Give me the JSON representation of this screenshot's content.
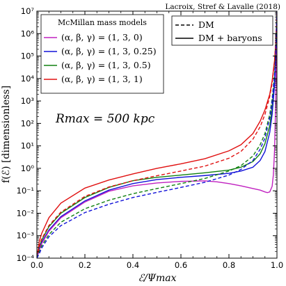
{
  "chart_data": {
    "type": "line",
    "credit": "Lacroix, Stref & Lavalle (2018)",
    "xlabel": "ℰ/Ψmax",
    "ylabel": "f(ℰ) [dimensionless]",
    "annotation": "Rmax = 500 kpc",
    "xlim": [
      0,
      1
    ],
    "ylim_log10": [
      -4,
      7
    ],
    "y_scale": "log",
    "x_ticks": [
      0,
      0.2,
      0.4,
      0.6,
      0.8,
      1.0
    ],
    "x_tick_labels": [
      "0.0",
      "0.2",
      "0.4",
      "0.6",
      "0.8",
      "1.0"
    ],
    "y_tick_exponents": [
      -4,
      -3,
      -2,
      -1,
      0,
      1,
      2,
      3,
      4,
      5,
      6,
      7
    ],
    "y_tick_labels": [
      "10⁻⁴",
      "10⁻³",
      "10⁻²",
      "10⁻¹",
      "10⁰",
      "10¹",
      "10²",
      "10³",
      "10⁴",
      "10⁵",
      "10⁶",
      "10⁷"
    ],
    "legend_models": {
      "title": "McMillan mass models",
      "placement": "upper-left",
      "entries": [
        {
          "label": "(α, β, γ) = (1, 3, 0)",
          "color": "#c020c0"
        },
        {
          "label": "(α, β, γ) = (1, 3, 0.25)",
          "color": "#1010d8"
        },
        {
          "label": "(α, β, γ) = (1, 3, 0.5)",
          "color": "#108010"
        },
        {
          "label": "(α, β, γ) = (1, 3, 1)",
          "color": "#e01010"
        }
      ]
    },
    "legend_styles": {
      "placement": "upper-right",
      "entries": [
        {
          "label": "DM",
          "dash": true
        },
        {
          "label": "DM + baryons",
          "dash": false
        }
      ]
    },
    "series": [
      {
        "model": 3,
        "dash": false,
        "x": [
          0,
          0.01,
          0.02,
          0.05,
          0.1,
          0.2,
          0.3,
          0.4,
          0.5,
          0.6,
          0.7,
          0.8,
          0.85,
          0.9,
          0.93,
          0.95,
          0.97,
          0.98,
          0.99,
          0.995,
          1.0
        ],
        "y_log10": [
          -4,
          -3.25,
          -2.9,
          -2.2,
          -1.55,
          -0.88,
          -0.52,
          -0.25,
          0.0,
          0.2,
          0.43,
          0.78,
          1.05,
          1.55,
          2.1,
          2.6,
          3.3,
          3.9,
          4.8,
          5.6,
          7
        ]
      },
      {
        "model": 2,
        "dash": false,
        "x": [
          0,
          0.01,
          0.02,
          0.05,
          0.1,
          0.2,
          0.3,
          0.4,
          0.5,
          0.6,
          0.7,
          0.8,
          0.85,
          0.9,
          0.93,
          0.95,
          0.97,
          0.98,
          0.99,
          0.995,
          1.0
        ],
        "y_log10": [
          -4,
          -3.5,
          -3.2,
          -2.6,
          -2.0,
          -1.3,
          -0.85,
          -0.55,
          -0.4,
          -0.3,
          -0.2,
          -0.08,
          0.05,
          0.3,
          0.65,
          1.1,
          1.9,
          2.7,
          3.9,
          5.1,
          7
        ]
      },
      {
        "model": 1,
        "dash": false,
        "x": [
          0,
          0.01,
          0.02,
          0.05,
          0.1,
          0.2,
          0.3,
          0.4,
          0.5,
          0.6,
          0.7,
          0.8,
          0.85,
          0.9,
          0.93,
          0.95,
          0.97,
          0.98,
          0.99,
          0.995,
          1.0
        ],
        "y_log10": [
          -4,
          -3.6,
          -3.3,
          -2.75,
          -2.15,
          -1.45,
          -0.97,
          -0.68,
          -0.5,
          -0.4,
          -0.32,
          -0.22,
          -0.12,
          0.05,
          0.35,
          0.75,
          1.6,
          2.4,
          3.7,
          5.0,
          7
        ]
      },
      {
        "model": 0,
        "dash": false,
        "x": [
          0,
          0.01,
          0.02,
          0.05,
          0.1,
          0.2,
          0.3,
          0.4,
          0.5,
          0.6,
          0.7,
          0.75,
          0.8,
          0.85,
          0.9,
          0.93,
          0.95,
          0.96,
          0.97,
          0.98,
          0.985,
          0.99,
          0.995,
          1.0
        ],
        "y_log10": [
          -4,
          -3.65,
          -3.35,
          -2.8,
          -2.2,
          -1.5,
          -1.02,
          -0.78,
          -0.65,
          -0.58,
          -0.56,
          -0.6,
          -0.68,
          -0.78,
          -0.9,
          -0.97,
          -1.05,
          -1.08,
          -1.05,
          -0.8,
          -0.3,
          0.8,
          3.0,
          7
        ]
      },
      {
        "model": 3,
        "dash": true,
        "x": [
          0,
          0.01,
          0.02,
          0.05,
          0.1,
          0.2,
          0.3,
          0.4,
          0.5,
          0.6,
          0.7,
          0.8,
          0.85,
          0.9,
          0.93,
          0.95,
          0.97,
          0.98,
          0.99,
          0.995,
          1.0
        ],
        "y_log10": [
          -4,
          -3.45,
          -3.15,
          -2.55,
          -1.95,
          -1.25,
          -0.83,
          -0.55,
          -0.33,
          -0.12,
          0.1,
          0.45,
          0.75,
          1.3,
          1.85,
          2.4,
          3.2,
          3.8,
          4.8,
          5.6,
          7
        ]
      },
      {
        "model": 2,
        "dash": true,
        "x": [
          0,
          0.01,
          0.02,
          0.05,
          0.1,
          0.2,
          0.3,
          0.4,
          0.5,
          0.6,
          0.7,
          0.8,
          0.85,
          0.9,
          0.93,
          0.95,
          0.97,
          0.98,
          0.99,
          0.995,
          1.0
        ],
        "y_log10": [
          -4,
          -3.7,
          -3.45,
          -2.95,
          -2.4,
          -1.8,
          -1.42,
          -1.13,
          -0.9,
          -0.68,
          -0.45,
          -0.12,
          0.12,
          0.55,
          1.05,
          1.55,
          2.4,
          3.1,
          4.2,
          5.2,
          7
        ]
      },
      {
        "model": 1,
        "dash": true,
        "x": [
          0,
          0.01,
          0.02,
          0.05,
          0.1,
          0.2,
          0.3,
          0.4,
          0.5,
          0.6,
          0.7,
          0.8,
          0.85,
          0.9,
          0.93,
          0.95,
          0.97,
          0.98,
          0.99,
          0.995,
          1.0
        ],
        "y_log10": [
          -4,
          -3.8,
          -3.55,
          -3.05,
          -2.55,
          -1.97,
          -1.6,
          -1.3,
          -1.07,
          -0.85,
          -0.62,
          -0.3,
          -0.05,
          0.35,
          0.85,
          1.35,
          2.25,
          3.0,
          4.1,
          5.1,
          7
        ]
      }
    ]
  }
}
